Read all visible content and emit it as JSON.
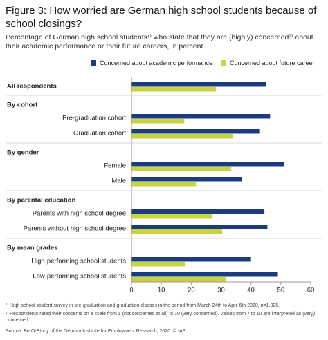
{
  "chart_data": {
    "type": "grouped-hbar",
    "title": "Figure 3: How worried are German high school students because of school closings?",
    "subtitle": "Percentage of German high school students¹⁾ who state that they are (highly) concerned²⁾ about their academic performance or their future careers, in percent",
    "groups": [
      {
        "title": "All respondents",
        "categories": [
          null
        ]
      },
      {
        "title": "By cohort",
        "categories": [
          "Pre-graduation cohort",
          "Graduation cohort"
        ]
      },
      {
        "title": "By gender",
        "categories": [
          "Female",
          "Male"
        ]
      },
      {
        "title": "By parental education",
        "categories": [
          "Parents with high school degree",
          "Parents without high school degree"
        ]
      },
      {
        "title": "By mean grades",
        "categories": [
          "High-performing school students",
          "Low-performing school students"
        ]
      }
    ],
    "series": [
      {
        "name": "Concerned about academic performance",
        "color": "#1b3c7c",
        "values": [
          45,
          46.4,
          43,
          51,
          37,
          44.5,
          45.5,
          40,
          49
        ]
      },
      {
        "name": "Concerned about future career",
        "color": "#c9d43c",
        "values": [
          28.3,
          17.7,
          34,
          33.4,
          21.6,
          27,
          30.4,
          18,
          31.6
        ]
      }
    ],
    "xlim": [
      0,
      60
    ],
    "xticks": [
      0,
      10,
      20,
      30,
      40,
      50,
      60
    ],
    "footnotes": [
      "¹⁾ High school student survey in pre-graduation and graduation classes in the period from March 24th to April 6th 2020, n=1.025.",
      "²⁾ Respondents rated their concerns on a scale from 1 (not concerned at all) to 10 (very concerned). Values from 7 to 10 are interpreted as (very) concerned.",
      "Source: BerO-Study of the German Institute for Employment Research, 2020. © IAB"
    ]
  }
}
